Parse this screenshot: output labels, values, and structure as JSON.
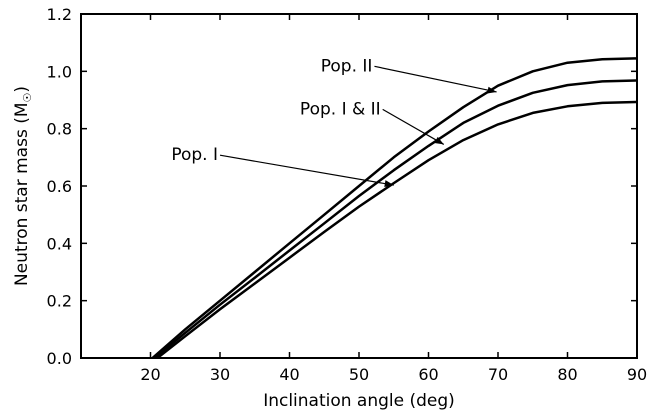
{
  "chart_data": {
    "type": "line",
    "title": "",
    "xlabel": "Inclination angle (deg)",
    "ylabel": "Neutron star mass (M",
    "ylabel_sub": "☉",
    "ylabel_close": ")",
    "xlim": [
      10,
      90
    ],
    "ylim": [
      0.0,
      1.2
    ],
    "xticks": [
      20,
      30,
      40,
      50,
      60,
      70,
      80,
      90
    ],
    "xtick_labels": [
      "20",
      "30",
      "40",
      "50",
      "60",
      "70",
      "80",
      "90"
    ],
    "yticks": [
      0.0,
      0.2,
      0.4,
      0.6,
      0.8,
      1.0,
      1.2
    ],
    "ytick_labels": [
      "0.0",
      "0.2",
      "0.4",
      "0.6",
      "0.8",
      "1.0",
      "1.2"
    ],
    "grid": false,
    "legend": "none",
    "line_color": "#000000",
    "series": [
      {
        "label": "Pop. II",
        "x": [
          20.3,
          25,
          30,
          35,
          40,
          45,
          50,
          55,
          60,
          65,
          70,
          75,
          80,
          85,
          90
        ],
        "y": [
          0.0,
          0.1,
          0.2,
          0.3,
          0.4,
          0.5,
          0.6,
          0.7,
          0.79,
          0.875,
          0.95,
          1.0,
          1.03,
          1.042,
          1.045
        ]
      },
      {
        "label": "Pop. I & II",
        "x": [
          20.6,
          25,
          30,
          35,
          40,
          45,
          50,
          55,
          60,
          65,
          70,
          75,
          80,
          85,
          90
        ],
        "y": [
          0.0,
          0.088,
          0.186,
          0.28,
          0.375,
          0.47,
          0.565,
          0.655,
          0.74,
          0.82,
          0.88,
          0.925,
          0.952,
          0.965,
          0.968
        ]
      },
      {
        "label": "Pop. I",
        "x": [
          21.0,
          25,
          30,
          35,
          40,
          45,
          50,
          55,
          60,
          65,
          70,
          75,
          80,
          85,
          90
        ],
        "y": [
          0.0,
          0.076,
          0.17,
          0.26,
          0.35,
          0.44,
          0.528,
          0.61,
          0.69,
          0.76,
          0.815,
          0.855,
          0.878,
          0.89,
          0.893
        ]
      }
    ],
    "annotations": [
      {
        "text": "Pop. II",
        "series": 0,
        "text_x": 44.5,
        "text_y": 1.0,
        "arrow_x": 69.8,
        "arrow_y": 0.928
      },
      {
        "text": "Pop. I & II",
        "series": 1,
        "text_x": 41.5,
        "text_y": 0.85,
        "arrow_x": 62.2,
        "arrow_y": 0.745
      },
      {
        "text": "Pop. I",
        "series": 2,
        "text_x": 23.0,
        "text_y": 0.69,
        "arrow_x": 55.0,
        "arrow_y": 0.603
      }
    ]
  }
}
